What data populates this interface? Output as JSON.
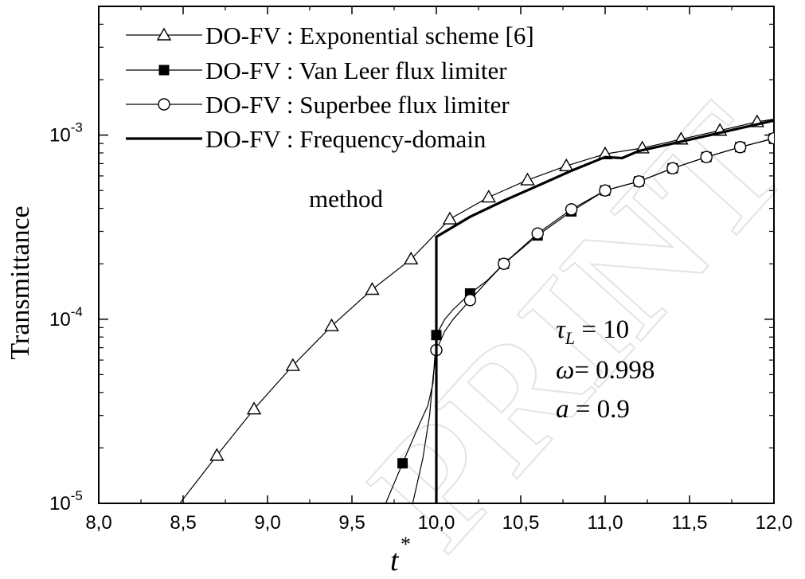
{
  "chart_data": {
    "type": "line",
    "xlabel": "t",
    "xlabel_superscript": "*",
    "ylabel": "Transmittance",
    "xlim": [
      8.0,
      12.0
    ],
    "ylim": [
      1e-05,
      0.005
    ],
    "y_scale": "log",
    "x_ticks": [
      "8,0",
      "8,5",
      "9,0",
      "9,5",
      "10,0",
      "10,5",
      "11,0",
      "11,5",
      "12,0"
    ],
    "y_ticks": [
      {
        "base": "10",
        "exp": "-5",
        "value": 1e-05
      },
      {
        "base": "10",
        "exp": "-4",
        "value": 0.0001
      },
      {
        "base": "10",
        "exp": "-3",
        "value": 0.001
      }
    ],
    "grid": false,
    "legend_position": "top-left",
    "series": [
      {
        "name": "DO-FV : Exponential scheme [6]",
        "marker": "open-triangle",
        "x": [
          8.48,
          8.7,
          8.92,
          9.15,
          9.38,
          9.62,
          9.85,
          10.08,
          10.31,
          10.54,
          10.77,
          11.0,
          11.22,
          11.45,
          11.68,
          11.9,
          12.0
        ],
        "y": [
          1e-05,
          1.82e-05,
          3.25e-05,
          5.6e-05,
          9.2e-05,
          0.000145,
          0.000212,
          0.00035,
          0.00046,
          0.00057,
          0.00068,
          0.00079,
          0.00085,
          0.00095,
          0.00106,
          0.00118,
          0.00122
        ],
        "marker_x": [
          8.7,
          8.92,
          9.15,
          9.38,
          9.62,
          9.85,
          10.08,
          10.31,
          10.54,
          10.77,
          11.0,
          11.22,
          11.45,
          11.68,
          11.9
        ]
      },
      {
        "name": "DO-FV : Van Leer flux limiter",
        "marker": "filled-square",
        "x": [
          9.7,
          9.8,
          9.9,
          9.95,
          9.98,
          10.0,
          10.05,
          10.1,
          10.2,
          10.3,
          10.4,
          10.6,
          10.8,
          11.0,
          11.2,
          11.4,
          11.6,
          11.8,
          12.0
        ],
        "y": [
          1e-05,
          1.65e-05,
          2.7e-05,
          3.4e-05,
          4.5e-05,
          8.2e-05,
          0.0001,
          0.000113,
          0.000138,
          0.000162,
          0.0002,
          0.000285,
          0.000385,
          0.0005,
          0.00056,
          0.00066,
          0.00076,
          0.00086,
          0.00096
        ],
        "marker_x": [
          9.8,
          10.0,
          10.2,
          10.4,
          10.6,
          10.8,
          11.0,
          11.2,
          11.4,
          11.6,
          11.8,
          12.0
        ]
      },
      {
        "name": "DO-FV : Superbee flux limiter",
        "marker": "open-circle",
        "x": [
          9.86,
          9.92,
          9.96,
          9.98,
          10.0,
          10.05,
          10.1,
          10.2,
          10.3,
          10.4,
          10.6,
          10.8,
          11.0,
          11.2,
          11.4,
          11.6,
          11.8,
          12.0
        ],
        "y": [
          1e-05,
          1.75e-05,
          3e-05,
          4.8e-05,
          6.8e-05,
          8.6e-05,
          0.0001,
          0.000127,
          0.00016,
          0.0002,
          0.000292,
          0.000395,
          0.0005,
          0.00056,
          0.00066,
          0.00076,
          0.00086,
          0.00096
        ],
        "marker_x": [
          10.0,
          10.2,
          10.4,
          10.6,
          10.8,
          11.0,
          11.2,
          11.4,
          11.6,
          11.8,
          12.0
        ]
      },
      {
        "name": "DO-FV : Frequency-domain method",
        "marker": "none",
        "x": [
          10.0,
          10.0,
          10.2,
          10.4,
          10.6,
          10.8,
          11.0,
          11.1,
          11.2,
          11.4,
          11.6,
          11.8,
          12.0
        ],
        "y": [
          1e-05,
          0.00028,
          0.00036,
          0.00044,
          0.00053,
          0.00064,
          0.00076,
          0.00075,
          0.00082,
          0.0009,
          0.00099,
          0.00109,
          0.0012
        ]
      }
    ],
    "annotations": [
      {
        "symbol": "τ",
        "subscript": "L",
        "text": " = 10"
      },
      {
        "symbol": "ω",
        "subscript": "",
        "text": "= 0.998"
      },
      {
        "symbol": "a",
        "subscript": "",
        "text": " = 0.9"
      }
    ],
    "legend_continuation": "method",
    "watermark_text": "PRINT"
  }
}
